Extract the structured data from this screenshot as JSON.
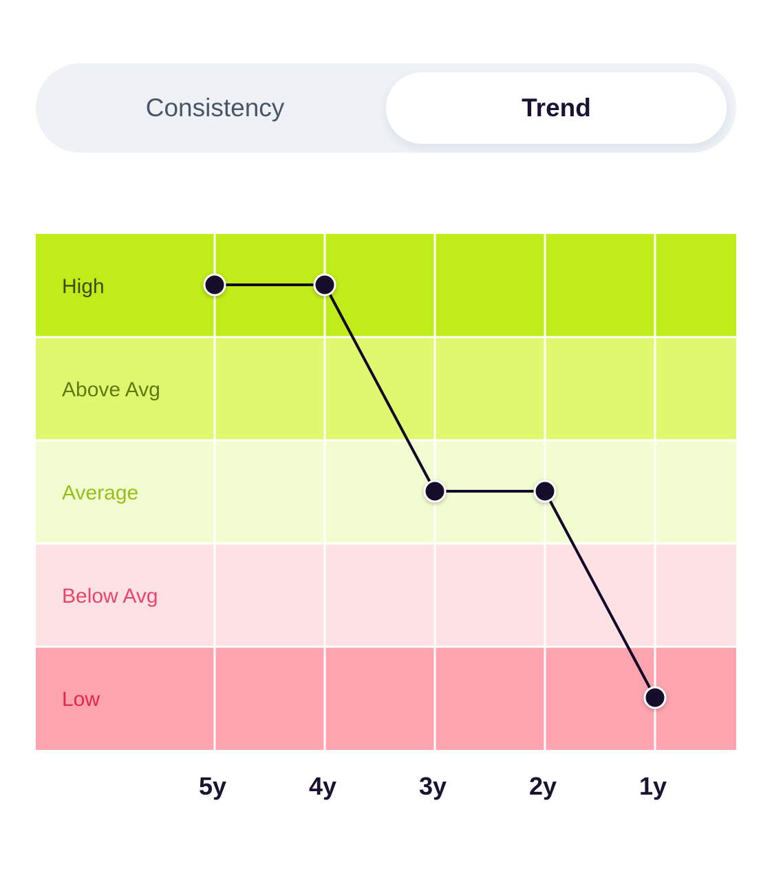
{
  "toggle": {
    "tabs": [
      {
        "label": "Consistency",
        "selected": false
      },
      {
        "label": "Trend",
        "selected": true
      }
    ]
  },
  "chart_data": {
    "type": "line",
    "title": "",
    "categories": [
      "5y",
      "4y",
      "3y",
      "2y",
      "1y"
    ],
    "levels": [
      "High",
      "Above Avg",
      "Average",
      "Below Avg",
      "Low"
    ],
    "series": [
      {
        "values": [
          "High",
          "High",
          "Average",
          "Average",
          "Low"
        ]
      }
    ],
    "level_colors": {
      "High": {
        "fill": "#c0ec1a",
        "text": "#3b4d0e"
      },
      "Above Avg": {
        "fill": "#dff86f",
        "text": "#5f7a12"
      },
      "Average": {
        "fill": "#f1fcd0",
        "text": "#97bf1a"
      },
      "Below Avg": {
        "fill": "#fde1e4",
        "text": "#e8466a"
      },
      "Low": {
        "fill": "#fea4af",
        "text": "#e5264c"
      }
    },
    "line_color": "#12082a",
    "grid": true
  }
}
